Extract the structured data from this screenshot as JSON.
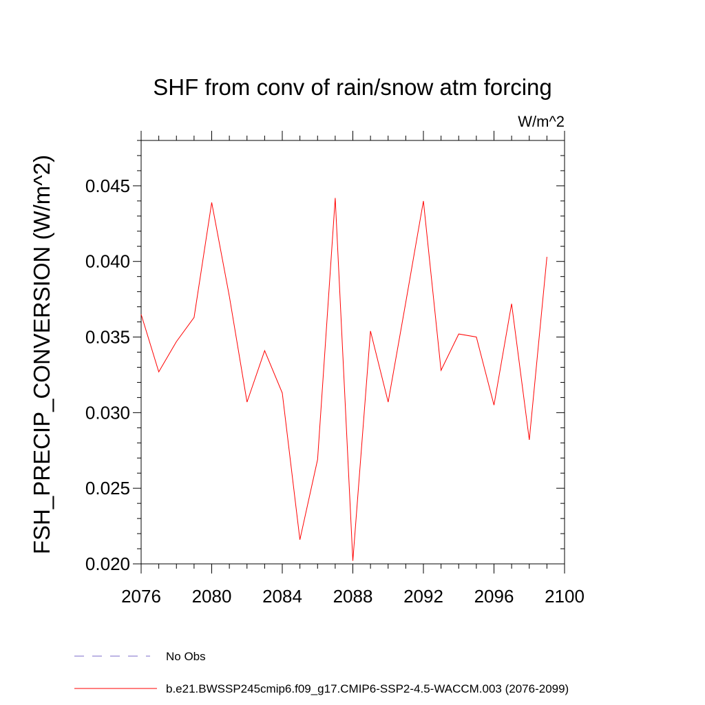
{
  "chart_data": {
    "type": "line",
    "title": "SHF from conv of rain/snow atm forcing",
    "units": "W/m^2",
    "ylabel": "FSH_PRECIP_CONVERSION  (W/m^2)",
    "xlabel": "",
    "xlim": [
      2076,
      2100
    ],
    "ylim": [
      0.02,
      0.048
    ],
    "xticks": [
      2076,
      2080,
      2084,
      2088,
      2092,
      2096,
      2100
    ],
    "xtick_labels": [
      "2076",
      "2080",
      "2084",
      "2088",
      "2092",
      "2096",
      "2100"
    ],
    "yticks": [
      0.02,
      0.025,
      0.03,
      0.035,
      0.04,
      0.045
    ],
    "ytick_labels": [
      "0.020",
      "0.025",
      "0.030",
      "0.035",
      "0.040",
      "0.045"
    ],
    "grid": false,
    "legend_position": "bottom",
    "series": [
      {
        "name": "b.e21.BWSSP245cmip6.f09_g17.CMIP6-SSP2-4.5-WACCM.003 (2076-2099)",
        "color": "#ff0000",
        "x": [
          2076,
          2077,
          2078,
          2079,
          2080,
          2081,
          2082,
          2083,
          2084,
          2085,
          2086,
          2087,
          2088,
          2089,
          2090,
          2091,
          2092,
          2093,
          2094,
          2095,
          2096,
          2097,
          2098,
          2099
        ],
        "values": [
          0.0365,
          0.0327,
          0.0347,
          0.0363,
          0.0439,
          0.0377,
          0.0307,
          0.0341,
          0.0313,
          0.0216,
          0.0269,
          0.0442,
          0.0202,
          0.0354,
          0.0307,
          0.0373,
          0.044,
          0.0328,
          0.0352,
          0.035,
          0.0305,
          0.0372,
          0.0282,
          0.0403
        ]
      }
    ],
    "legend": [
      {
        "label": "No Obs",
        "color": "#7b68c8",
        "style": "dashed"
      },
      {
        "label": "b.e21.BWSSP245cmip6.f09_g17.CMIP6-SSP2-4.5-WACCM.003 (2076-2099)",
        "color": "#ff0000",
        "style": "solid"
      }
    ]
  }
}
